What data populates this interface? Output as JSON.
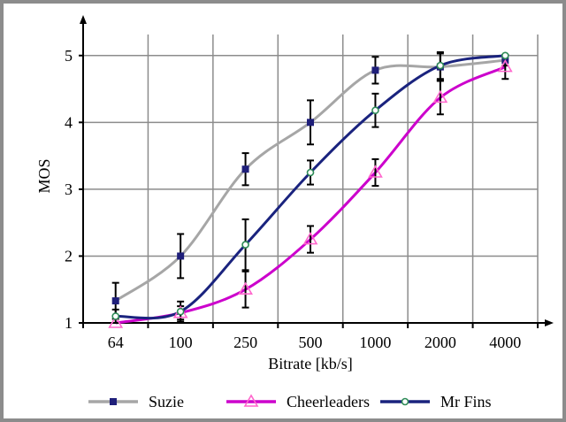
{
  "chart_data": {
    "type": "line",
    "x_axis_type": "category",
    "categories": [
      "64",
      "100",
      "250",
      "500",
      "1000",
      "2000",
      "4000"
    ],
    "xlabel": "Bitrate [kb/s]",
    "ylabel": "MOS",
    "ylim": [
      1,
      5.5
    ],
    "yticks": [
      1,
      2,
      3,
      4,
      5
    ],
    "grid": true,
    "legend_position": "bottom",
    "smooth": true,
    "series": [
      {
        "name": "Suzie",
        "color": "#a6a6a6",
        "marker": "square",
        "marker_color": "#1f1f7a",
        "values": [
          1.33,
          2.0,
          3.3,
          4.0,
          4.78,
          4.83,
          4.93
        ],
        "error": [
          0.27,
          0.33,
          0.24,
          0.33,
          0.2,
          0.2,
          0.08
        ]
      },
      {
        "name": "Cheerleaders",
        "color": "#cc00cc",
        "marker": "triangle",
        "marker_color": "#ff66cc",
        "values": [
          1.0,
          1.15,
          1.5,
          2.25,
          3.25,
          4.37,
          4.83
        ],
        "error": [
          0,
          0.1,
          0.27,
          0.2,
          0.2,
          0.25,
          0.18
        ]
      },
      {
        "name": "Mr Fins",
        "color": "#1a237e",
        "marker": "circle",
        "marker_color": "#2e8b57",
        "values": [
          1.1,
          1.17,
          2.17,
          3.25,
          4.18,
          4.85,
          5.0
        ],
        "error": [
          0.1,
          0.15,
          0.38,
          0.18,
          0.25,
          0.2,
          0.0
        ]
      }
    ]
  }
}
